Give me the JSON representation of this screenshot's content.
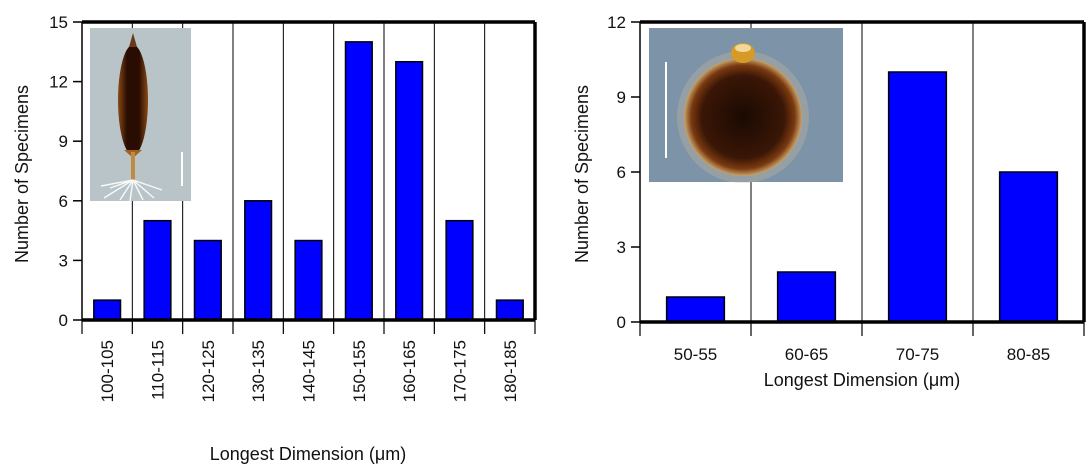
{
  "chart_data": [
    {
      "type": "bar",
      "categories": [
        "100-105",
        "110-115",
        "120-125",
        "130-135",
        "140-145",
        "150-155",
        "160-165",
        "170-175",
        "180-185"
      ],
      "values": [
        1,
        5,
        4,
        6,
        4,
        14,
        13,
        5,
        1
      ],
      "xlabel": "Longest Dimension (μm)",
      "ylabel": "Number of Specimens",
      "ylim": [
        0,
        15
      ],
      "yticks": [
        0,
        3,
        6,
        9,
        12,
        15
      ],
      "bar_color": "#0000ff",
      "vertical_gridlines": true,
      "inset_image": "specimen-micrograph-elongated"
    },
    {
      "type": "bar",
      "categories": [
        "50-55",
        "60-65",
        "70-75",
        "80-85"
      ],
      "values": [
        1,
        2,
        10,
        6
      ],
      "xlabel": "Longest Dimension (μm)",
      "ylabel": "Number of Specimens",
      "ylim": [
        0,
        12
      ],
      "yticks": [
        0,
        3,
        6,
        9,
        12
      ],
      "bar_color": "#0000ff",
      "vertical_gridlines": true,
      "inset_image": "specimen-micrograph-spherical"
    }
  ]
}
